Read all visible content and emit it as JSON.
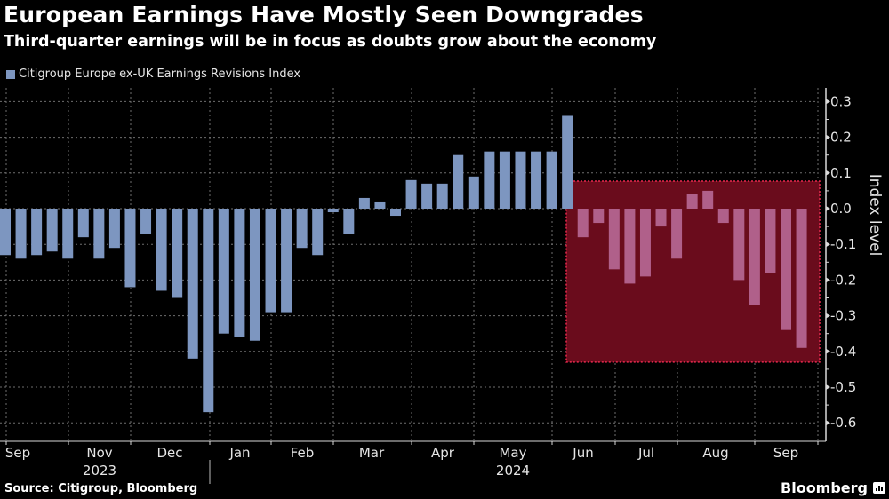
{
  "header": {
    "title": "European Earnings Have Mostly Seen Downgrades",
    "subtitle": "Third-quarter earnings will be in focus as doubts grow about the economy"
  },
  "footer": {
    "source": "Source: Citigroup, Bloomberg",
    "brand": "Bloomberg"
  },
  "colors": {
    "background": "#000000",
    "bar": "#7d96c0",
    "highlight_bar": "#b0608a",
    "highlight_fill": "#6a0c1c",
    "highlight_border": "#e8294e",
    "grid": "#6e6e6e",
    "text": "#e6e6e6"
  },
  "chart_data": {
    "type": "bar",
    "title": "European Earnings Have Mostly Seen Downgrades",
    "subtitle": "Third-quarter earnings will be in focus as doubts grow about the economy",
    "legend": [
      "Citigroup Europe ex-UK Earnings Revisions Index"
    ],
    "legend_position": "top-left",
    "xlabel": "",
    "ylabel": "Index level",
    "ylim": [
      -0.6,
      0.3
    ],
    "yticks": [
      "0.3",
      "0.2",
      "0.1",
      "0.0",
      "-0.1",
      "-0.2",
      "-0.3",
      "-0.4",
      "-0.5",
      "-0.6"
    ],
    "ytick_values": [
      0.3,
      0.2,
      0.1,
      0.0,
      -0.1,
      -0.2,
      -0.3,
      -0.4,
      -0.5,
      -0.6
    ],
    "y_axis_side": "right",
    "grid": true,
    "x_month_labels": [
      "Sep",
      "Nov",
      "Dec",
      "Jan",
      "Feb",
      "Mar",
      "Apr",
      "May",
      "Jun",
      "Jul",
      "Aug",
      "Sep"
    ],
    "x_year_labels": [
      {
        "label": "2023",
        "under": "Nov"
      },
      {
        "label": "2024",
        "under": "May"
      }
    ],
    "series": [
      {
        "name": "Citigroup Europe ex-UK Earnings Revisions Index",
        "values": [
          -0.13,
          -0.14,
          -0.13,
          -0.12,
          -0.14,
          -0.08,
          -0.14,
          -0.11,
          -0.22,
          -0.07,
          -0.23,
          -0.25,
          -0.42,
          -0.57,
          -0.35,
          -0.36,
          -0.37,
          -0.29,
          -0.29,
          -0.11,
          -0.13,
          -0.01,
          -0.07,
          0.03,
          0.02,
          -0.02,
          0.08,
          0.07,
          0.07,
          0.15,
          0.09,
          0.16,
          0.16,
          0.16,
          0.16,
          0.16,
          0.26,
          -0.08,
          -0.04,
          -0.17,
          -0.21,
          -0.19,
          -0.05,
          -0.14,
          0.04,
          0.05,
          -0.04,
          -0.2,
          -0.27,
          -0.18,
          -0.34,
          -0.39
        ]
      }
    ],
    "highlight": {
      "description": "Shaded region marking recent downgrades",
      "first_bar_index": 37,
      "last_bar_index": 51,
      "y_range": [
        -0.43,
        0.077
      ]
    }
  }
}
